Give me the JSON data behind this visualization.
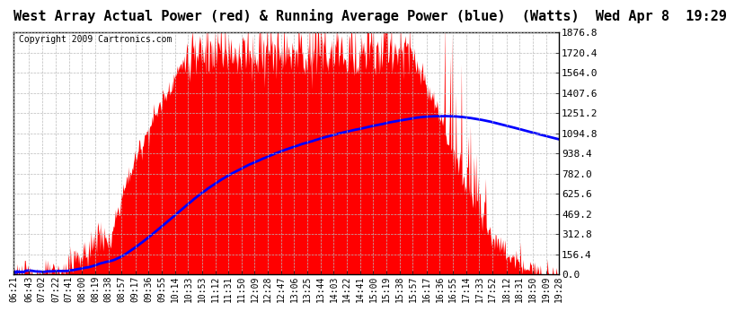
{
  "title": "West Array Actual Power (red) & Running Average Power (blue)  (Watts)  Wed Apr 8  19:29",
  "copyright": "Copyright 2009 Cartronics.com",
  "background_color": "#ffffff",
  "plot_bg_color": "#ffffff",
  "grid_color": "#bbbbbb",
  "yticks": [
    0.0,
    156.4,
    312.8,
    469.2,
    625.6,
    782.0,
    938.4,
    1094.8,
    1251.2,
    1407.6,
    1564.0,
    1720.4,
    1876.8
  ],
  "ymax": 1876.8,
  "title_fontsize": 11,
  "copyright_fontsize": 7,
  "axis_fontsize": 8,
  "tick_labels": [
    "06:21",
    "06:43",
    "07:02",
    "07:22",
    "07:41",
    "08:00",
    "08:19",
    "08:38",
    "08:57",
    "09:17",
    "09:36",
    "09:55",
    "10:14",
    "10:33",
    "10:53",
    "11:12",
    "11:31",
    "11:50",
    "12:09",
    "12:28",
    "12:47",
    "13:06",
    "13:25",
    "13:44",
    "14:03",
    "14:22",
    "14:41",
    "15:00",
    "15:19",
    "15:38",
    "15:57",
    "16:17",
    "16:36",
    "16:55",
    "17:14",
    "17:33",
    "17:52",
    "18:12",
    "18:31",
    "18:50",
    "19:09",
    "19:28"
  ]
}
